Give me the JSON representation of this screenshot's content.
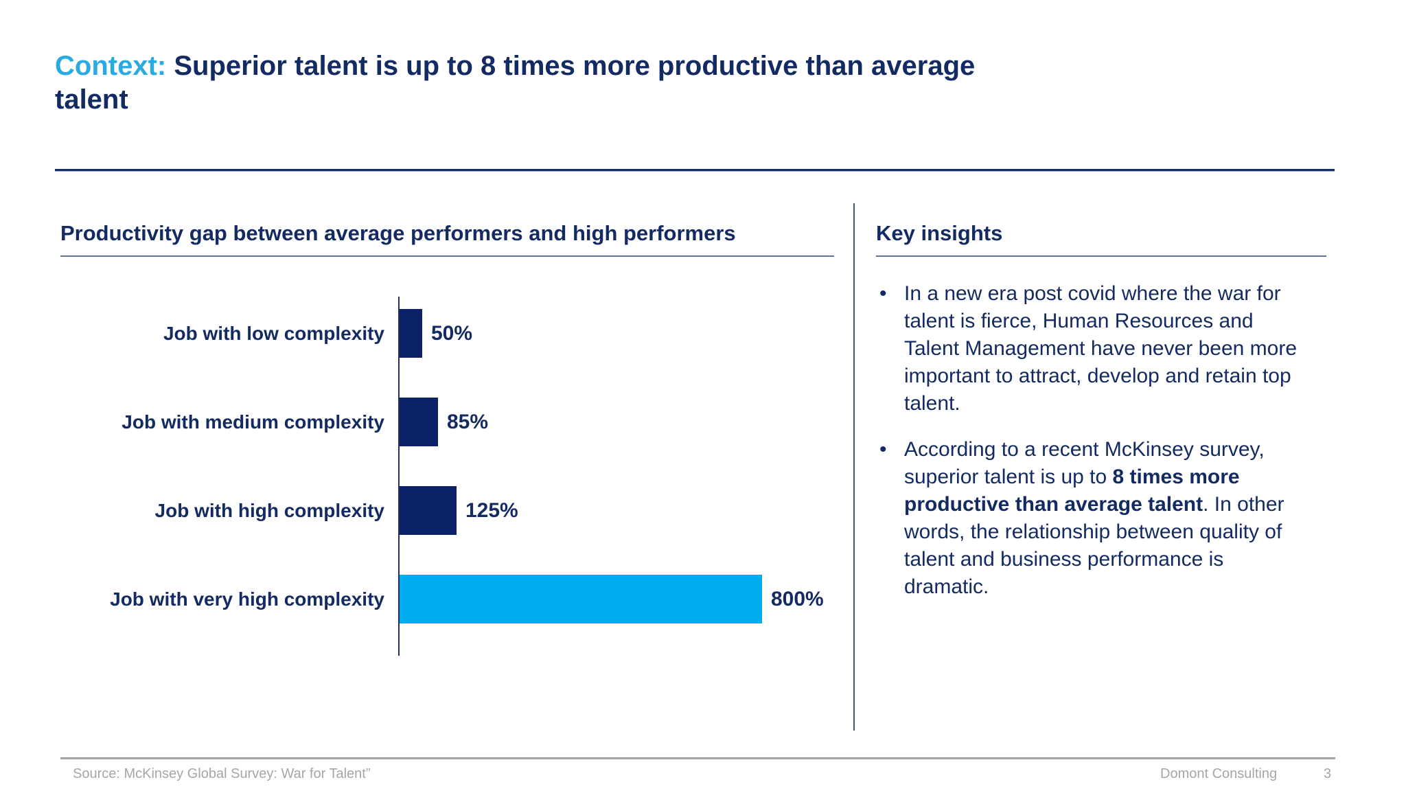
{
  "slide": {
    "title": {
      "accent": "Context:",
      "rest": " Superior talent is up to 8 times more productive than average talent"
    },
    "left_section": {
      "heading": "Productivity gap between average performers and high performers"
    },
    "right_section": {
      "heading": "Key insights",
      "bullets": [
        {
          "marker": "•",
          "pre": "In a new era post covid where the war for talent is fierce, Human Resources and Talent Management have never been more important to attract, develop and retain top talent.",
          "bold": "",
          "post": ""
        },
        {
          "marker": "•",
          "pre": "According to a recent McKinsey survey, superior talent is up to ",
          "bold": "8 times more productive than average talent",
          "post": ". In other words, the relationship between quality of talent and business performance is dramatic."
        }
      ]
    },
    "footer": {
      "source": "Source: McKinsey Global Survey: War for Talent”",
      "company": "Domont Consulting",
      "page": "3"
    },
    "colors": {
      "accent_blue": "#29abe2",
      "navy": "#132a62",
      "bar_navy": "#0a2265",
      "bar_cyan": "#00aeef"
    }
  },
  "chart_data": {
    "type": "bar",
    "orientation": "horizontal",
    "title": "Productivity gap between average performers and high performers",
    "categories": [
      "Job with low complexity",
      "Job with medium complexity",
      "Job with high complexity",
      "Job with very high complexity"
    ],
    "values": [
      50,
      85,
      125,
      800
    ],
    "unit": "%",
    "xlabel": "",
    "ylabel": "",
    "xlim": [
      0,
      800
    ],
    "grid": false,
    "legend": "none",
    "bars": [
      {
        "label": "Job with low complexity",
        "value": 50,
        "display": "50%",
        "color": "#0a2265"
      },
      {
        "label": "Job with medium complexity",
        "value": 85,
        "display": "85%",
        "color": "#0a2265"
      },
      {
        "label": "Job with high complexity",
        "value": 125,
        "display": "125%",
        "color": "#0a2265"
      },
      {
        "label": "Job with very high complexity",
        "value": 800,
        "display": "800%",
        "color": "#00aeef"
      }
    ]
  }
}
